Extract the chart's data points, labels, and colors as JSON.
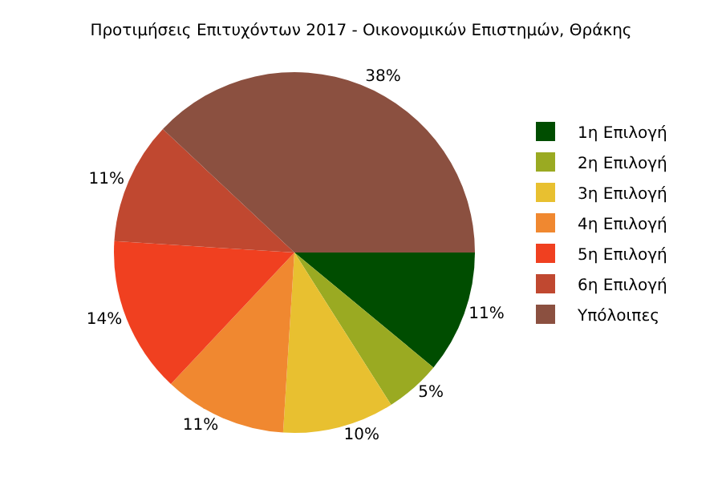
{
  "chart_data": {
    "type": "pie",
    "title": "Προτιμήσεις Επιτυχόντων 2017 - Οικονομικών Επιστημών, Θράκης",
    "categories": [
      "1η Επιλογή",
      "2η Επιλογή",
      "3η Επιλογή",
      "4η Επιλογή",
      "5η Επιλογή",
      "6η Επιλογή",
      "Υπόλοιπες"
    ],
    "values": [
      11,
      5,
      10,
      11,
      14,
      11,
      38
    ],
    "value_labels": [
      "11%",
      "5%",
      "10%",
      "11%",
      "14%",
      "11%",
      "38%"
    ],
    "colors": [
      "#004d00",
      "#9aaa22",
      "#e8c030",
      "#f08830",
      "#f04020",
      "#c04830",
      "#8b5040"
    ],
    "legend": "right"
  }
}
